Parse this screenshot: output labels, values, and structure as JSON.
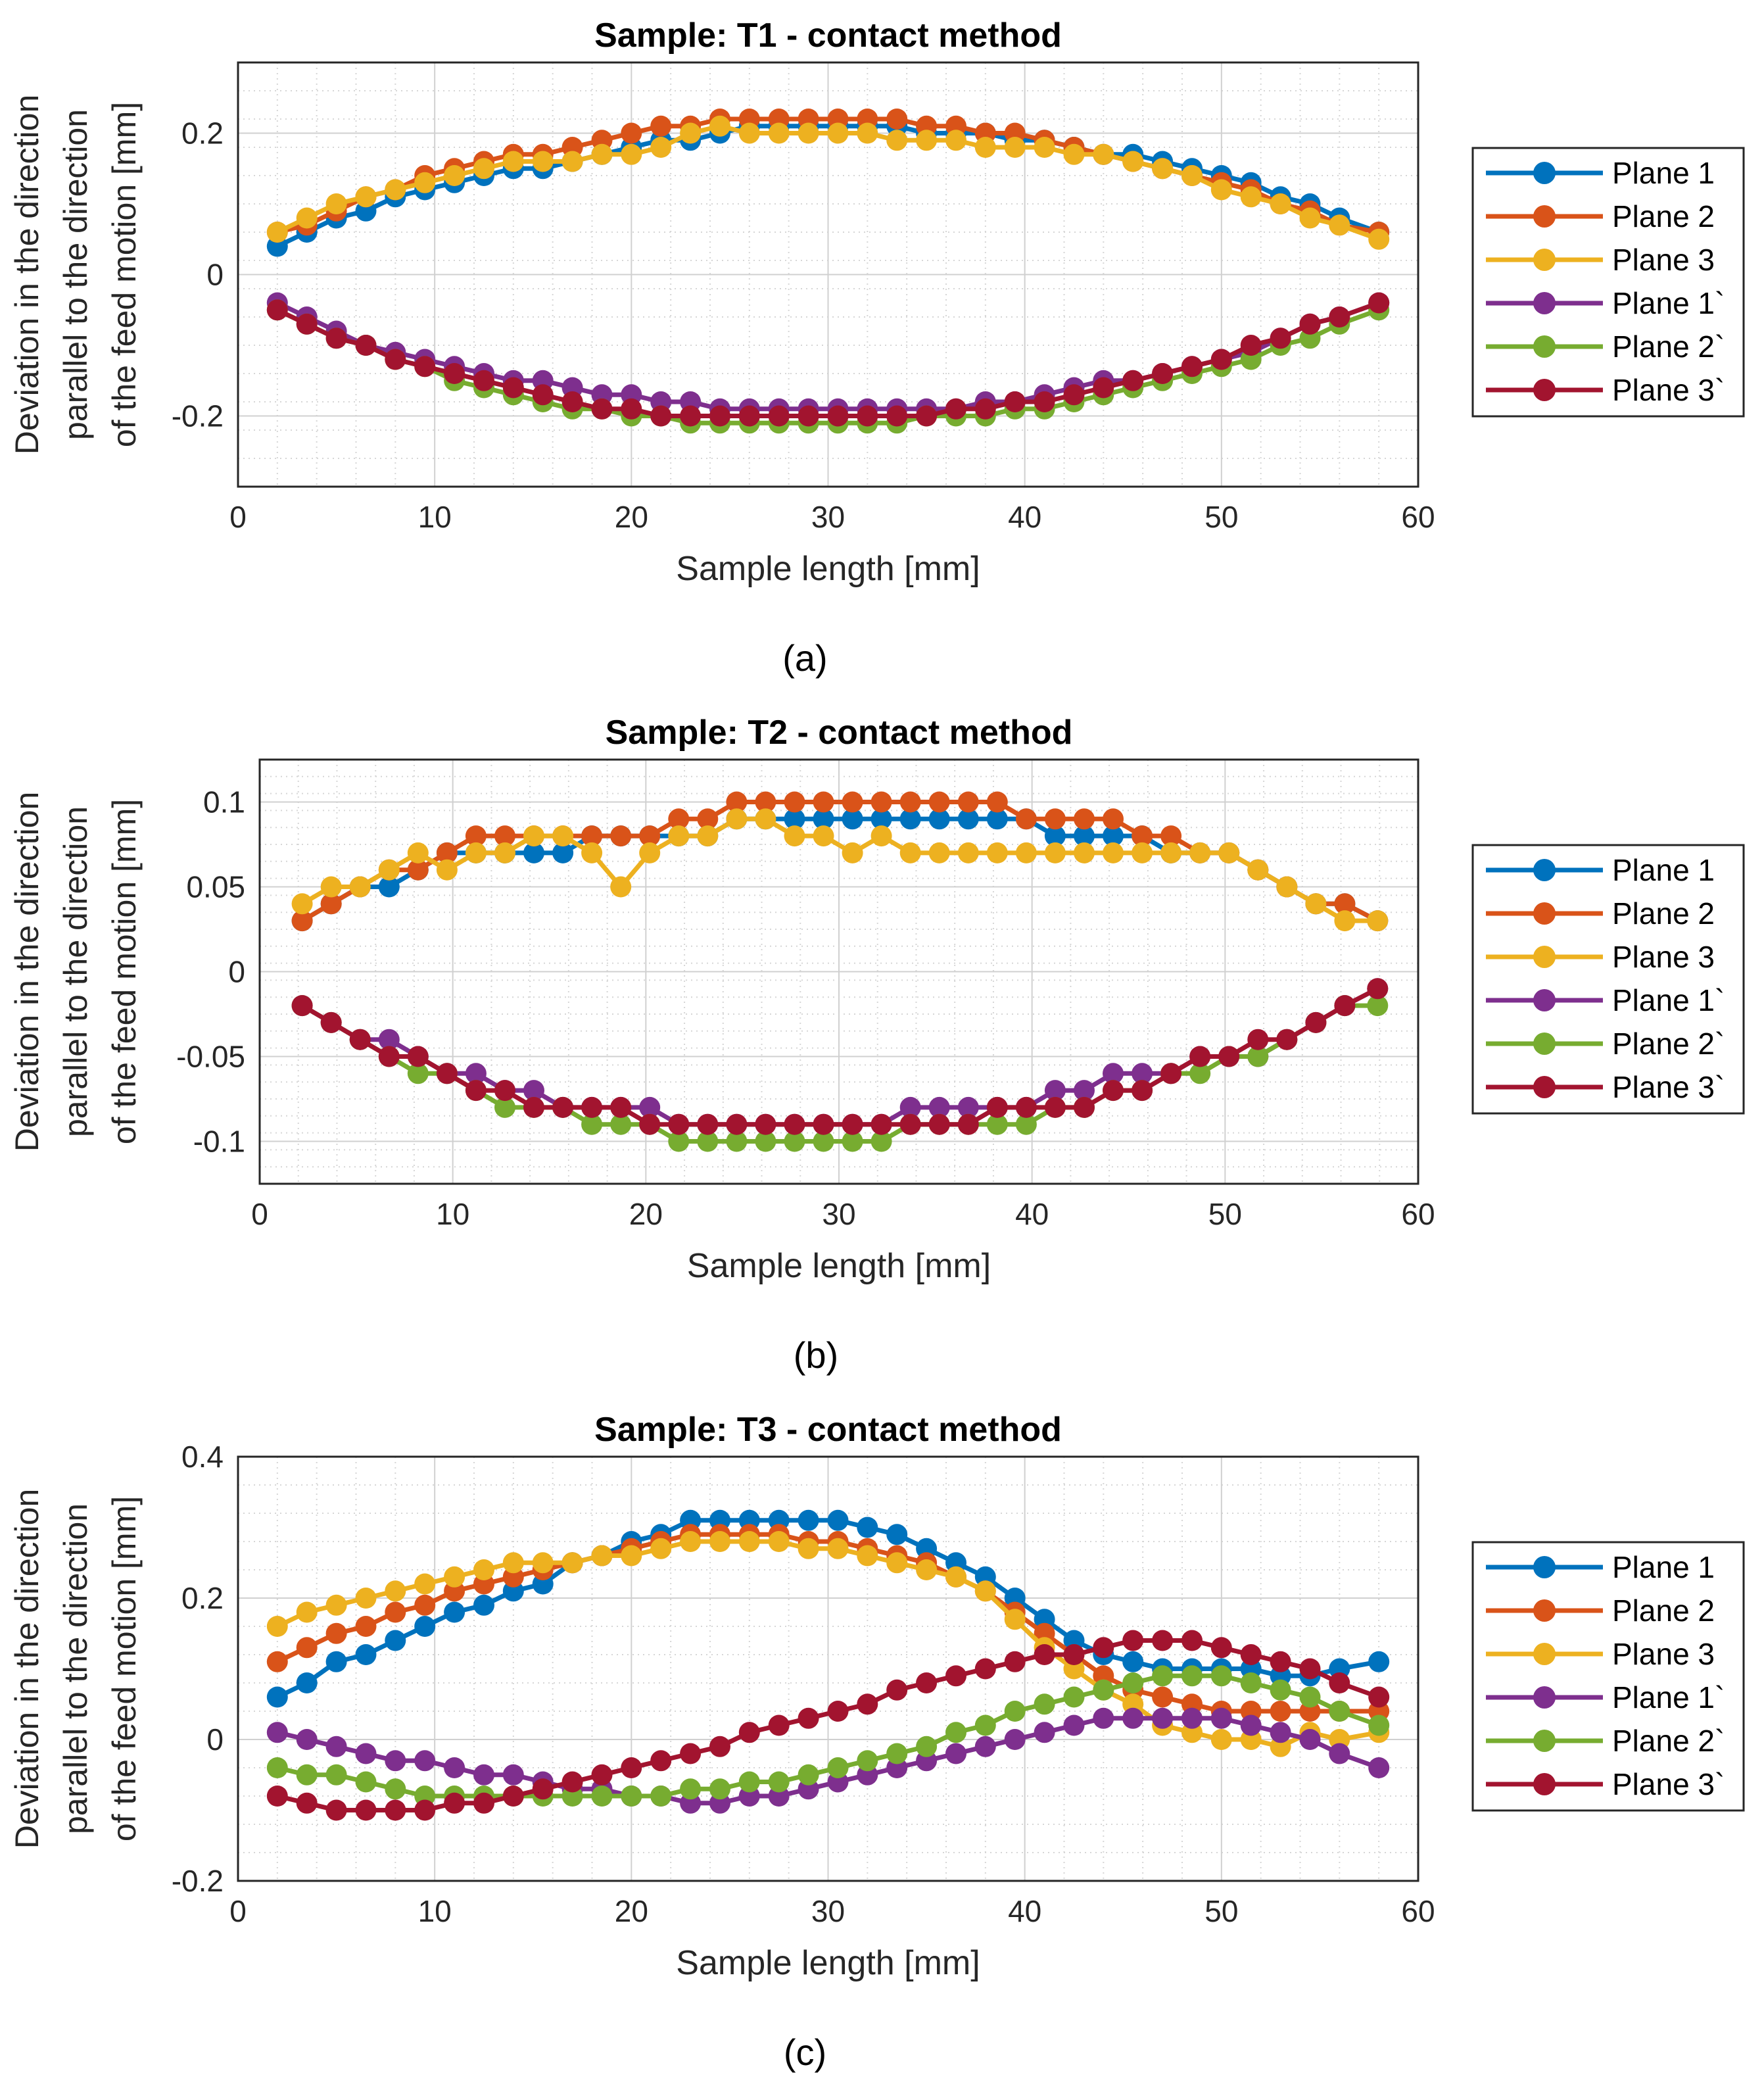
{
  "figure": {
    "series_names": [
      "Plane 1",
      "Plane 2",
      "Plane 3",
      "Plane 1`",
      "Plane 2`",
      "Plane 3`"
    ],
    "series_colors": [
      "#0072BD",
      "#D95319",
      "#EDB120",
      "#7E2F8E",
      "#77AC30",
      "#A2142F"
    ]
  },
  "chart_data": [
    {
      "type": "line",
      "panel_label": "(a)",
      "title": "Sample: T1 - contact method",
      "xlabel": "Sample length [mm]",
      "ylabel_lines": [
        "Deviation in the direction",
        "parallel to the direction",
        "of the feed motion [mm]"
      ],
      "xlim": [
        0,
        60
      ],
      "ylim": [
        -0.3,
        0.3
      ],
      "xticks": [
        0,
        10,
        20,
        30,
        40,
        50,
        60
      ],
      "xtick_labels": [
        "0",
        "10",
        "20",
        "30",
        "40",
        "50",
        "60"
      ],
      "yticks": [
        -0.2,
        0,
        0.2
      ],
      "ytick_labels": [
        "-0.2",
        "0",
        "0.2"
      ],
      "grid": true,
      "legend_position": "outside-right",
      "x": [
        2,
        3.5,
        5,
        6.5,
        8,
        9.5,
        11,
        12.5,
        14,
        15.5,
        17,
        18.5,
        20,
        21.5,
        23,
        24.5,
        26,
        27.5,
        29,
        30.5,
        32,
        33.5,
        35,
        36.5,
        38,
        39.5,
        41,
        42.5,
        44,
        45.5,
        47,
        48.5,
        50,
        51.5,
        53,
        54.5,
        56,
        58
      ],
      "series": [
        {
          "name": "Plane 1",
          "values": [
            0.04,
            0.06,
            0.08,
            0.09,
            0.11,
            0.12,
            0.13,
            0.14,
            0.15,
            0.15,
            0.16,
            0.17,
            0.18,
            0.19,
            0.19,
            0.2,
            0.21,
            0.21,
            0.21,
            0.21,
            0.21,
            0.21,
            0.2,
            0.2,
            0.2,
            0.19,
            0.19,
            0.18,
            0.17,
            0.17,
            0.16,
            0.15,
            0.14,
            0.13,
            0.11,
            0.1,
            0.08,
            0.06
          ]
        },
        {
          "name": "Plane 2",
          "values": [
            0.06,
            0.07,
            0.09,
            0.11,
            0.12,
            0.14,
            0.15,
            0.16,
            0.17,
            0.17,
            0.18,
            0.19,
            0.2,
            0.21,
            0.21,
            0.22,
            0.22,
            0.22,
            0.22,
            0.22,
            0.22,
            0.22,
            0.21,
            0.21,
            0.2,
            0.2,
            0.19,
            0.18,
            0.17,
            0.16,
            0.15,
            0.14,
            0.13,
            0.12,
            0.1,
            0.09,
            0.07,
            0.06
          ]
        },
        {
          "name": "Plane 3",
          "values": [
            0.06,
            0.08,
            0.1,
            0.11,
            0.12,
            0.13,
            0.14,
            0.15,
            0.16,
            0.16,
            0.16,
            0.17,
            0.17,
            0.18,
            0.2,
            0.21,
            0.2,
            0.2,
            0.2,
            0.2,
            0.2,
            0.19,
            0.19,
            0.19,
            0.18,
            0.18,
            0.18,
            0.17,
            0.17,
            0.16,
            0.15,
            0.14,
            0.12,
            0.11,
            0.1,
            0.08,
            0.07,
            0.05
          ]
        },
        {
          "name": "Plane 1`",
          "values": [
            -0.04,
            -0.06,
            -0.08,
            -0.1,
            -0.11,
            -0.12,
            -0.13,
            -0.14,
            -0.15,
            -0.15,
            -0.16,
            -0.17,
            -0.17,
            -0.18,
            -0.18,
            -0.19,
            -0.19,
            -0.19,
            -0.19,
            -0.19,
            -0.19,
            -0.19,
            -0.19,
            -0.19,
            -0.18,
            -0.18,
            -0.17,
            -0.16,
            -0.15,
            -0.15,
            -0.14,
            -0.13,
            -0.12,
            -0.11,
            -0.09,
            -0.07,
            -0.06,
            -0.04
          ]
        },
        {
          "name": "Plane 2`",
          "values": [
            -0.05,
            -0.07,
            -0.09,
            -0.1,
            -0.12,
            -0.13,
            -0.15,
            -0.16,
            -0.17,
            -0.18,
            -0.19,
            -0.19,
            -0.2,
            -0.2,
            -0.21,
            -0.21,
            -0.21,
            -0.21,
            -0.21,
            -0.21,
            -0.21,
            -0.21,
            -0.2,
            -0.2,
            -0.2,
            -0.19,
            -0.19,
            -0.18,
            -0.17,
            -0.16,
            -0.15,
            -0.14,
            -0.13,
            -0.12,
            -0.1,
            -0.09,
            -0.07,
            -0.05
          ]
        },
        {
          "name": "Plane 3`",
          "values": [
            -0.05,
            -0.07,
            -0.09,
            -0.1,
            -0.12,
            -0.13,
            -0.14,
            -0.15,
            -0.16,
            -0.17,
            -0.18,
            -0.19,
            -0.19,
            -0.2,
            -0.2,
            -0.2,
            -0.2,
            -0.2,
            -0.2,
            -0.2,
            -0.2,
            -0.2,
            -0.2,
            -0.19,
            -0.19,
            -0.18,
            -0.18,
            -0.17,
            -0.16,
            -0.15,
            -0.14,
            -0.13,
            -0.12,
            -0.1,
            -0.09,
            -0.07,
            -0.06,
            -0.04
          ]
        }
      ]
    },
    {
      "type": "line",
      "panel_label": "(b)",
      "title": "Sample: T2 - contact method",
      "xlabel": "Sample length [mm]",
      "ylabel_lines": [
        "Deviation in the direction",
        "parallel to the direction",
        "of the feed motion [mm]"
      ],
      "xlim": [
        0,
        60
      ],
      "ylim": [
        -0.125,
        0.125
      ],
      "xticks": [
        0,
        10,
        20,
        30,
        40,
        50,
        60
      ],
      "xtick_labels": [
        "0",
        "10",
        "20",
        "30",
        "40",
        "50",
        "60"
      ],
      "yticks": [
        -0.1,
        -0.05,
        0,
        0.05,
        0.1
      ],
      "ytick_labels": [
        "-0.1",
        "-0.05",
        "0",
        "0.05",
        "0.1"
      ],
      "grid": true,
      "legend_position": "outside-right",
      "x": [
        2.2,
        3.7,
        5.2,
        6.7,
        8.2,
        9.7,
        11.2,
        12.7,
        14.2,
        15.7,
        17.2,
        18.7,
        20.2,
        21.7,
        23.2,
        24.7,
        26.2,
        27.7,
        29.2,
        30.7,
        32.2,
        33.7,
        35.2,
        36.7,
        38.2,
        39.7,
        41.2,
        42.7,
        44.2,
        45.7,
        47.2,
        48.7,
        50.2,
        51.7,
        53.2,
        54.7,
        56.2,
        57.9
      ],
      "series": [
        {
          "name": "Plane 1",
          "values": [
            0.03,
            0.04,
            0.05,
            0.05,
            0.06,
            0.07,
            0.07,
            0.07,
            0.07,
            0.07,
            0.08,
            0.08,
            0.08,
            0.08,
            0.08,
            0.09,
            0.09,
            0.09,
            0.09,
            0.09,
            0.09,
            0.09,
            0.09,
            0.09,
            0.09,
            0.09,
            0.08,
            0.08,
            0.08,
            0.08,
            0.07,
            0.07,
            0.07,
            0.06,
            0.05,
            0.04,
            0.04,
            0.03
          ]
        },
        {
          "name": "Plane 2",
          "values": [
            0.03,
            0.04,
            0.05,
            0.06,
            0.06,
            0.07,
            0.08,
            0.08,
            0.08,
            0.08,
            0.08,
            0.08,
            0.08,
            0.09,
            0.09,
            0.1,
            0.1,
            0.1,
            0.1,
            0.1,
            0.1,
            0.1,
            0.1,
            0.1,
            0.1,
            0.09,
            0.09,
            0.09,
            0.09,
            0.08,
            0.08,
            0.07,
            0.07,
            0.06,
            0.05,
            0.04,
            0.04,
            0.03
          ]
        },
        {
          "name": "Plane 3",
          "values": [
            0.04,
            0.05,
            0.05,
            0.06,
            0.07,
            0.06,
            0.07,
            0.07,
            0.08,
            0.08,
            0.07,
            0.05,
            0.07,
            0.08,
            0.08,
            0.09,
            0.09,
            0.08,
            0.08,
            0.07,
            0.08,
            0.07,
            0.07,
            0.07,
            0.07,
            0.07,
            0.07,
            0.07,
            0.07,
            0.07,
            0.07,
            0.07,
            0.07,
            0.06,
            0.05,
            0.04,
            0.03,
            0.03
          ]
        },
        {
          "name": "Plane 1`",
          "values": [
            -0.02,
            -0.03,
            -0.04,
            -0.04,
            -0.05,
            -0.06,
            -0.06,
            -0.07,
            -0.07,
            -0.08,
            -0.08,
            -0.08,
            -0.08,
            -0.09,
            -0.09,
            -0.09,
            -0.09,
            -0.09,
            -0.09,
            -0.09,
            -0.09,
            -0.08,
            -0.08,
            -0.08,
            -0.08,
            -0.08,
            -0.07,
            -0.07,
            -0.06,
            -0.06,
            -0.06,
            -0.05,
            -0.05,
            -0.05,
            -0.04,
            -0.03,
            -0.02,
            -0.01
          ]
        },
        {
          "name": "Plane 2`",
          "values": [
            -0.02,
            -0.03,
            -0.04,
            -0.05,
            -0.06,
            -0.06,
            -0.07,
            -0.08,
            -0.08,
            -0.08,
            -0.09,
            -0.09,
            -0.09,
            -0.1,
            -0.1,
            -0.1,
            -0.1,
            -0.1,
            -0.1,
            -0.1,
            -0.1,
            -0.09,
            -0.09,
            -0.09,
            -0.09,
            -0.09,
            -0.08,
            -0.08,
            -0.07,
            -0.07,
            -0.06,
            -0.06,
            -0.05,
            -0.05,
            -0.04,
            -0.03,
            -0.02,
            -0.02
          ]
        },
        {
          "name": "Plane 3`",
          "values": [
            -0.02,
            -0.03,
            -0.04,
            -0.05,
            -0.05,
            -0.06,
            -0.07,
            -0.07,
            -0.08,
            -0.08,
            -0.08,
            -0.08,
            -0.09,
            -0.09,
            -0.09,
            -0.09,
            -0.09,
            -0.09,
            -0.09,
            -0.09,
            -0.09,
            -0.09,
            -0.09,
            -0.09,
            -0.08,
            -0.08,
            -0.08,
            -0.08,
            -0.07,
            -0.07,
            -0.06,
            -0.05,
            -0.05,
            -0.04,
            -0.04,
            -0.03,
            -0.02,
            -0.01
          ]
        }
      ]
    },
    {
      "type": "line",
      "panel_label": "(c)",
      "title": "Sample: T3 - contact method",
      "xlabel": "Sample length [mm]",
      "ylabel_lines": [
        "Deviation in the direction",
        "parallel to the direction",
        "of the feed motion [mm]"
      ],
      "xlim": [
        0,
        60
      ],
      "ylim": [
        -0.2,
        0.4
      ],
      "xticks": [
        0,
        10,
        20,
        30,
        40,
        50,
        60
      ],
      "xtick_labels": [
        "0",
        "10",
        "20",
        "30",
        "40",
        "50",
        "60"
      ],
      "yticks": [
        -0.2,
        0,
        0.2,
        0.4
      ],
      "ytick_labels": [
        "-0.2",
        "0",
        "0.2",
        "0.4"
      ],
      "grid": true,
      "legend_position": "outside-right",
      "x": [
        2,
        3.5,
        5,
        6.5,
        8,
        9.5,
        11,
        12.5,
        14,
        15.5,
        17,
        18.5,
        20,
        21.5,
        23,
        24.5,
        26,
        27.5,
        29,
        30.5,
        32,
        33.5,
        35,
        36.5,
        38,
        39.5,
        41,
        42.5,
        44,
        45.5,
        47,
        48.5,
        50,
        51.5,
        53,
        54.5,
        56,
        58
      ],
      "series": [
        {
          "name": "Plane 1",
          "values": [
            0.06,
            0.08,
            0.11,
            0.12,
            0.14,
            0.16,
            0.18,
            0.19,
            0.21,
            0.22,
            0.25,
            0.26,
            0.28,
            0.29,
            0.31,
            0.31,
            0.31,
            0.31,
            0.31,
            0.31,
            0.3,
            0.29,
            0.27,
            0.25,
            0.23,
            0.2,
            0.17,
            0.14,
            0.12,
            0.11,
            0.1,
            0.1,
            0.1,
            0.1,
            0.09,
            0.09,
            0.1,
            0.11
          ]
        },
        {
          "name": "Plane 2",
          "values": [
            0.11,
            0.13,
            0.15,
            0.16,
            0.18,
            0.19,
            0.21,
            0.22,
            0.23,
            0.24,
            0.25,
            0.26,
            0.27,
            0.28,
            0.29,
            0.29,
            0.29,
            0.29,
            0.28,
            0.28,
            0.27,
            0.26,
            0.25,
            0.23,
            0.21,
            0.18,
            0.15,
            0.12,
            0.09,
            0.07,
            0.06,
            0.05,
            0.04,
            0.04,
            0.04,
            0.04,
            0.04,
            0.04
          ]
        },
        {
          "name": "Plane 3",
          "values": [
            0.16,
            0.18,
            0.19,
            0.2,
            0.21,
            0.22,
            0.23,
            0.24,
            0.25,
            0.25,
            0.25,
            0.26,
            0.26,
            0.27,
            0.28,
            0.28,
            0.28,
            0.28,
            0.27,
            0.27,
            0.26,
            0.25,
            0.24,
            0.23,
            0.21,
            0.17,
            0.13,
            0.1,
            0.07,
            0.05,
            0.02,
            0.01,
            0.0,
            0.0,
            -0.01,
            0.01,
            0.0,
            0.01
          ]
        },
        {
          "name": "Plane 1`",
          "values": [
            0.01,
            0.0,
            -0.01,
            -0.02,
            -0.03,
            -0.03,
            -0.04,
            -0.05,
            -0.05,
            -0.06,
            -0.07,
            -0.07,
            -0.08,
            -0.08,
            -0.09,
            -0.09,
            -0.08,
            -0.08,
            -0.07,
            -0.06,
            -0.05,
            -0.04,
            -0.03,
            -0.02,
            -0.01,
            0.0,
            0.01,
            0.02,
            0.03,
            0.03,
            0.03,
            0.03,
            0.03,
            0.02,
            0.01,
            0.0,
            -0.02,
            -0.04
          ]
        },
        {
          "name": "Plane 2`",
          "values": [
            -0.04,
            -0.05,
            -0.05,
            -0.06,
            -0.07,
            -0.08,
            -0.08,
            -0.08,
            -0.08,
            -0.08,
            -0.08,
            -0.08,
            -0.08,
            -0.08,
            -0.07,
            -0.07,
            -0.06,
            -0.06,
            -0.05,
            -0.04,
            -0.03,
            -0.02,
            -0.01,
            0.01,
            0.02,
            0.04,
            0.05,
            0.06,
            0.07,
            0.08,
            0.09,
            0.09,
            0.09,
            0.08,
            0.07,
            0.06,
            0.04,
            0.02
          ]
        },
        {
          "name": "Plane 3`",
          "values": [
            -0.08,
            -0.09,
            -0.1,
            -0.1,
            -0.1,
            -0.1,
            -0.09,
            -0.09,
            -0.08,
            -0.07,
            -0.06,
            -0.05,
            -0.04,
            -0.03,
            -0.02,
            -0.01,
            0.01,
            0.02,
            0.03,
            0.04,
            0.05,
            0.07,
            0.08,
            0.09,
            0.1,
            0.11,
            0.12,
            0.12,
            0.13,
            0.14,
            0.14,
            0.14,
            0.13,
            0.12,
            0.11,
            0.1,
            0.08,
            0.06
          ]
        }
      ]
    }
  ]
}
